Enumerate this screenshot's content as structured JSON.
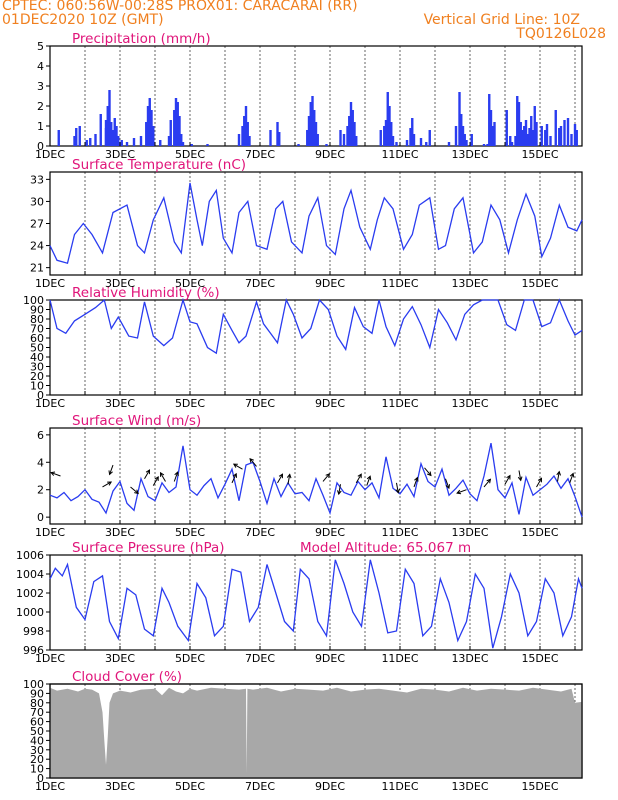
{
  "header": {
    "line1_left": "CPTEC:   060:56W-00:28S   PROX01: CARACARAI (RR)",
    "line2_left": "01DEC2020 10Z (GMT)",
    "line2_right": "Vertical Grid Line: 10Z",
    "line3_right": "TQ0126L028"
  },
  "colors": {
    "header": "#f08020",
    "title": "#e0157a",
    "series": "#2a3cf0",
    "cloud": "#a8a8a8"
  },
  "x_ticks": [
    "1DEC",
    "3DEC",
    "5DEC",
    "7DEC",
    "9DEC",
    "11DEC",
    "13DEC",
    "15DEC"
  ],
  "chart_data": [
    {
      "type": "bar",
      "title": "Precipitation (mm/h)",
      "x_range_days": [
        1,
        16.2
      ],
      "ylim": [
        0,
        5
      ],
      "yticks": [
        0,
        1,
        2,
        3,
        4,
        5
      ],
      "x": [
        1.25,
        1.7,
        1.75,
        1.85,
        2.05,
        2.15,
        2.3,
        2.45,
        2.6,
        2.6,
        2.65,
        2.7,
        2.75,
        2.8,
        2.85,
        2.9,
        2.95,
        3.05,
        3.2,
        3.4,
        3.6,
        3.75,
        3.8,
        3.85,
        3.9,
        3.95,
        4.15,
        4.4,
        4.45,
        4.55,
        4.6,
        4.65,
        4.7,
        4.75,
        4.8,
        5.05,
        5.5,
        6.4,
        6.5,
        6.55,
        6.6,
        6.65,
        6.7,
        7.3,
        7.5,
        7.55,
        8.1,
        8.35,
        8.4,
        8.45,
        8.5,
        8.55,
        8.6,
        8.65,
        8.9,
        9.3,
        9.4,
        9.5,
        9.55,
        9.6,
        9.65,
        9.7,
        9.75,
        10.45,
        10.55,
        10.6,
        10.65,
        10.7,
        10.75,
        10.8,
        10.9,
        11.2,
        11.3,
        11.35,
        11.4,
        11.6,
        11.75,
        11.85,
        12.4,
        12.6,
        12.7,
        12.75,
        12.8,
        12.85,
        12.9,
        13.05,
        13.4,
        13.5,
        13.55,
        13.6,
        13.65,
        13.7,
        14.05,
        14.15,
        14.2,
        14.3,
        14.35,
        14.4,
        14.45,
        14.5,
        14.55,
        14.6,
        14.65,
        14.7,
        14.75,
        14.8,
        14.85,
        14.9,
        15.05,
        15.15,
        15.2,
        15.3,
        15.45,
        15.55,
        15.6,
        15.7,
        15.8,
        15.9,
        16.0,
        16.05
      ],
      "values": [
        0.8,
        0.5,
        0.9,
        1.0,
        0.3,
        0.4,
        0.6,
        1.6,
        0.9,
        1.3,
        2.0,
        2.8,
        1.2,
        0.8,
        1.4,
        1.0,
        0.5,
        0.3,
        0.2,
        0.4,
        0.5,
        1.2,
        2.0,
        2.4,
        1.8,
        1.0,
        0.3,
        0.5,
        1.3,
        1.8,
        2.4,
        2.2,
        1.5,
        0.6,
        0.2,
        0.1,
        0.1,
        0.6,
        1.0,
        1.5,
        2.0,
        1.2,
        0.5,
        0.8,
        1.2,
        0.7,
        0.1,
        0.8,
        1.5,
        2.2,
        2.5,
        1.8,
        1.2,
        0.6,
        0.1,
        0.8,
        0.6,
        1.0,
        1.5,
        2.2,
        1.8,
        1.2,
        0.5,
        0.8,
        1.0,
        1.3,
        2.7,
        2.0,
        1.2,
        0.5,
        0.2,
        0.3,
        0.9,
        1.4,
        0.6,
        0.4,
        0.2,
        0.8,
        0.2,
        1.0,
        2.7,
        1.6,
        1.0,
        0.6,
        0.3,
        0.6,
        0.1,
        0.1,
        2.6,
        1.8,
        1.0,
        1.2,
        1.8,
        0.5,
        0.2,
        0.5,
        2.5,
        2.2,
        1.2,
        0.8,
        1.0,
        1.3,
        0.6,
        0.9,
        1.5,
        0.8,
        2.0,
        1.2,
        1.0,
        0.8,
        1.1,
        0.5,
        1.8,
        0.9,
        1.0,
        1.3,
        1.4,
        0.6,
        1.1,
        0.8
      ]
    },
    {
      "type": "line",
      "title": "Surface Temperature (nC)",
      "x_range_days": [
        1,
        16.2
      ],
      "ylim": [
        20,
        34
      ],
      "yticks": [
        21,
        24,
        27,
        30,
        33
      ],
      "x": [
        1.0,
        1.2,
        1.5,
        1.7,
        1.95,
        2.2,
        2.5,
        2.8,
        3.2,
        3.5,
        3.7,
        3.95,
        4.25,
        4.55,
        4.75,
        5.0,
        5.2,
        5.35,
        5.55,
        5.75,
        5.95,
        6.2,
        6.4,
        6.65,
        6.9,
        7.2,
        7.45,
        7.65,
        7.9,
        8.2,
        8.4,
        8.65,
        8.9,
        9.15,
        9.4,
        9.6,
        9.85,
        10.15,
        10.35,
        10.55,
        10.8,
        11.1,
        11.35,
        11.55,
        11.85,
        12.1,
        12.3,
        12.55,
        12.8,
        13.1,
        13.35,
        13.6,
        13.85,
        14.1,
        14.35,
        14.6,
        14.85,
        15.05,
        15.3,
        15.55,
        15.8,
        16.05,
        16.2
      ],
      "values": [
        24.0,
        22.0,
        21.6,
        25.5,
        27.0,
        25.5,
        23.0,
        28.5,
        29.5,
        24.0,
        23.0,
        27.5,
        30.5,
        24.5,
        23.0,
        32.5,
        27.5,
        24.0,
        30.0,
        31.5,
        25.0,
        23.0,
        28.5,
        30.0,
        24.0,
        23.5,
        29.0,
        30.0,
        24.5,
        23.0,
        28.0,
        30.5,
        24.0,
        22.8,
        29.0,
        31.5,
        26.5,
        23.5,
        27.5,
        30.5,
        29.0,
        23.5,
        25.5,
        29.5,
        30.5,
        23.5,
        24.0,
        29.0,
        30.5,
        23.0,
        24.5,
        29.5,
        27.5,
        23.0,
        27.5,
        31.0,
        28.0,
        22.5,
        25.0,
        29.5,
        26.5,
        26.0,
        27.5
      ]
    },
    {
      "type": "line",
      "title": "Relative Humidity (%)",
      "x_range_days": [
        1,
        16.2
      ],
      "ylim": [
        0,
        100
      ],
      "yticks": [
        0,
        10,
        20,
        30,
        40,
        50,
        60,
        70,
        80,
        90,
        100
      ],
      "x": [
        1.0,
        1.2,
        1.45,
        1.7,
        2.0,
        2.3,
        2.55,
        2.75,
        2.95,
        3.25,
        3.5,
        3.7,
        3.95,
        4.25,
        4.5,
        4.8,
        5.0,
        5.2,
        5.5,
        5.75,
        5.95,
        6.2,
        6.4,
        6.6,
        6.9,
        7.1,
        7.3,
        7.5,
        7.75,
        7.95,
        8.2,
        8.45,
        8.7,
        8.95,
        9.2,
        9.45,
        9.7,
        9.95,
        10.2,
        10.4,
        10.6,
        10.85,
        11.1,
        11.35,
        11.6,
        11.85,
        12.1,
        12.35,
        12.6,
        12.85,
        13.1,
        13.35,
        13.6,
        13.8,
        14.05,
        14.3,
        14.55,
        14.8,
        15.05,
        15.3,
        15.55,
        15.8,
        16.0,
        16.2
      ],
      "values": [
        100,
        70,
        65,
        78,
        85,
        92,
        100,
        70,
        82,
        62,
        60,
        98,
        62,
        52,
        60,
        100,
        77,
        75,
        50,
        44,
        85,
        68,
        55,
        62,
        98,
        75,
        65,
        55,
        100,
        85,
        60,
        70,
        100,
        90,
        62,
        48,
        92,
        72,
        65,
        100,
        72,
        52,
        80,
        93,
        74,
        50,
        90,
        76,
        58,
        85,
        95,
        100,
        100,
        100,
        74,
        68,
        100,
        100,
        72,
        76,
        100,
        78,
        63,
        68
      ]
    },
    {
      "type": "line",
      "title": "Surface Wind (m/s)",
      "x_range_days": [
        1,
        16.2
      ],
      "ylim": [
        -0.5,
        6.5
      ],
      "yticks": [
        0,
        2,
        4,
        6
      ],
      "x": [
        1.0,
        1.2,
        1.4,
        1.6,
        1.8,
        2.0,
        2.2,
        2.4,
        2.6,
        2.8,
        3.0,
        3.2,
        3.4,
        3.6,
        3.8,
        4.0,
        4.2,
        4.4,
        4.6,
        4.8,
        5.0,
        5.2,
        5.4,
        5.6,
        5.8,
        6.0,
        6.2,
        6.4,
        6.6,
        6.8,
        7.0,
        7.2,
        7.4,
        7.6,
        7.8,
        8.0,
        8.2,
        8.4,
        8.6,
        8.8,
        9.0,
        9.2,
        9.4,
        9.6,
        9.8,
        10.0,
        10.2,
        10.4,
        10.6,
        10.8,
        11.0,
        11.2,
        11.4,
        11.6,
        11.8,
        12.0,
        12.2,
        12.4,
        12.6,
        12.8,
        13.0,
        13.2,
        13.4,
        13.6,
        13.8,
        14.0,
        14.2,
        14.4,
        14.6,
        14.8,
        15.0,
        15.2,
        15.4,
        15.6,
        15.8,
        16.0,
        16.2
      ],
      "values": [
        1.6,
        1.4,
        1.8,
        1.2,
        1.5,
        2.0,
        1.3,
        1.1,
        0.3,
        1.9,
        2.6,
        1.0,
        0.5,
        2.8,
        1.5,
        1.2,
        2.5,
        1.8,
        2.2,
        5.2,
        2.0,
        1.6,
        2.3,
        2.8,
        1.4,
        2.4,
        3.5,
        1.2,
        3.8,
        4.0,
        2.6,
        1.0,
        2.8,
        1.5,
        2.5,
        1.7,
        1.8,
        1.2,
        2.8,
        1.6,
        0.3,
        2.5,
        1.8,
        1.6,
        2.6,
        2.0,
        2.5,
        1.4,
        4.4,
        2.1,
        1.7,
        2.4,
        1.5,
        3.9,
        2.6,
        2.2,
        3.5,
        1.6,
        2.1,
        2.7,
        1.7,
        1.2,
        3.0,
        5.4,
        2.0,
        1.4,
        2.5,
        0.2,
        2.9,
        1.6,
        2.0,
        2.4,
        3.0,
        2.1,
        2.8,
        1.5,
        0.0
      ],
      "arrows": [
        {
          "x": 1.3,
          "speed": 3.0,
          "dir_deg": 290
        },
        {
          "x": 2.5,
          "speed": 2.2,
          "dir_deg": 60
        },
        {
          "x": 2.8,
          "speed": 3.8,
          "dir_deg": 200
        },
        {
          "x": 3.3,
          "speed": 2.2,
          "dir_deg": 130
        },
        {
          "x": 3.7,
          "speed": 2.8,
          "dir_deg": 30
        },
        {
          "x": 3.95,
          "speed": 2.3,
          "dir_deg": 30
        },
        {
          "x": 4.3,
          "speed": 2.6,
          "dir_deg": 330
        },
        {
          "x": 4.55,
          "speed": 2.6,
          "dir_deg": 20
        },
        {
          "x": 6.2,
          "speed": 2.5,
          "dir_deg": 25
        },
        {
          "x": 6.5,
          "speed": 3.5,
          "dir_deg": 300
        },
        {
          "x": 6.9,
          "speed": 3.7,
          "dir_deg": 320
        },
        {
          "x": 7.5,
          "speed": 2.5,
          "dir_deg": 30
        },
        {
          "x": 7.8,
          "speed": 2.4,
          "dir_deg": 10
        },
        {
          "x": 8.8,
          "speed": 2.6,
          "dir_deg": 40
        },
        {
          "x": 9.3,
          "speed": 2.4,
          "dir_deg": 190
        },
        {
          "x": 9.75,
          "speed": 2.5,
          "dir_deg": 30
        },
        {
          "x": 10.05,
          "speed": 2.3,
          "dir_deg": 20
        },
        {
          "x": 10.9,
          "speed": 2.5,
          "dir_deg": 170
        },
        {
          "x": 11.4,
          "speed": 2.2,
          "dir_deg": 20
        },
        {
          "x": 11.7,
          "speed": 3.6,
          "dir_deg": 140
        },
        {
          "x": 12.3,
          "speed": 2.8,
          "dir_deg": 160
        },
        {
          "x": 12.9,
          "speed": 2.0,
          "dir_deg": 250
        },
        {
          "x": 13.4,
          "speed": 2.2,
          "dir_deg": 40
        },
        {
          "x": 14.0,
          "speed": 2.4,
          "dir_deg": 30
        },
        {
          "x": 14.4,
          "speed": 3.4,
          "dir_deg": 170
        },
        {
          "x": 14.9,
          "speed": 2.2,
          "dir_deg": 30
        },
        {
          "x": 15.5,
          "speed": 2.6,
          "dir_deg": 10
        },
        {
          "x": 15.85,
          "speed": 2.5,
          "dir_deg": 20
        }
      ]
    },
    {
      "type": "line",
      "title": "Surface Pressure (hPa)",
      "annotation": "Model Altitude: 65.067  m",
      "x_range_days": [
        1,
        16.2
      ],
      "ylim": [
        996,
        1006
      ],
      "yticks": [
        996,
        998,
        1000,
        1002,
        1004,
        1006
      ],
      "x": [
        1.0,
        1.15,
        1.35,
        1.5,
        1.75,
        2.0,
        2.25,
        2.5,
        2.7,
        2.95,
        3.2,
        3.45,
        3.7,
        3.95,
        4.2,
        4.4,
        4.65,
        4.95,
        5.2,
        5.45,
        5.7,
        5.95,
        6.2,
        6.45,
        6.7,
        6.95,
        7.2,
        7.45,
        7.7,
        7.95,
        8.15,
        8.4,
        8.65,
        8.9,
        9.15,
        9.4,
        9.65,
        9.9,
        10.15,
        10.4,
        10.65,
        10.9,
        11.15,
        11.4,
        11.65,
        11.9,
        12.15,
        12.4,
        12.65,
        12.9,
        13.15,
        13.4,
        13.65,
        13.9,
        14.15,
        14.4,
        14.65,
        14.9,
        15.15,
        15.4,
        15.65,
        15.9,
        16.1,
        16.2
      ],
      "values": [
        1003.5,
        1004.6,
        1003.8,
        1005.0,
        1000.5,
        999.2,
        1003.2,
        1003.8,
        999.0,
        997.2,
        1002.5,
        1001.8,
        998.2,
        997.5,
        1002.5,
        1001.0,
        998.5,
        997.0,
        1003.0,
        1001.5,
        997.5,
        998.5,
        1004.5,
        1004.2,
        999.0,
        1000.5,
        1005.0,
        1002.0,
        999.0,
        998.0,
        1004.5,
        1003.5,
        999.0,
        997.5,
        1005.5,
        1003.0,
        1000.0,
        998.5,
        1005.5,
        1002.0,
        997.8,
        998.0,
        1004.5,
        1003.0,
        997.5,
        998.5,
        1003.5,
        1001.0,
        997.0,
        999.0,
        1004.0,
        1002.5,
        996.2,
        999.5,
        1004.0,
        1002.0,
        997.5,
        999.0,
        1003.5,
        1002.0,
        997.5,
        999.5,
        1003.5,
        1002.5
      ]
    },
    {
      "type": "area",
      "title": "Cloud Cover (%)",
      "x_range_days": [
        1,
        16.2
      ],
      "ylim": [
        0,
        100
      ],
      "yticks": [
        0,
        10,
        20,
        30,
        40,
        50,
        60,
        70,
        80,
        90,
        100
      ],
      "x": [
        1.0,
        1.2,
        1.5,
        1.8,
        2.0,
        2.2,
        2.4,
        2.5,
        2.55,
        2.6,
        2.65,
        2.7,
        2.8,
        3.0,
        3.3,
        3.6,
        4.0,
        4.2,
        4.4,
        4.6,
        4.8,
        5.0,
        5.2,
        5.6,
        6.0,
        6.4,
        6.6,
        6.62,
        6.64,
        6.8,
        7.2,
        7.6,
        8.0,
        8.4,
        8.8,
        9.2,
        9.6,
        10.0,
        10.4,
        10.8,
        11.2,
        11.6,
        12.0,
        12.4,
        12.8,
        13.2,
        13.6,
        14.0,
        14.4,
        14.8,
        15.2,
        15.6,
        15.9,
        16.0,
        16.2
      ],
      "values": [
        96,
        93,
        95,
        92,
        95,
        94,
        90,
        70,
        40,
        14,
        45,
        80,
        90,
        93,
        91,
        94,
        95,
        88,
        96,
        92,
        90,
        95,
        93,
        96,
        95,
        94,
        95,
        5,
        95,
        94,
        96,
        92,
        95,
        94,
        93,
        96,
        92,
        94,
        95,
        93,
        91,
        95,
        94,
        92,
        96,
        93,
        95,
        94,
        93,
        96,
        94,
        92,
        95,
        80,
        81
      ]
    }
  ]
}
